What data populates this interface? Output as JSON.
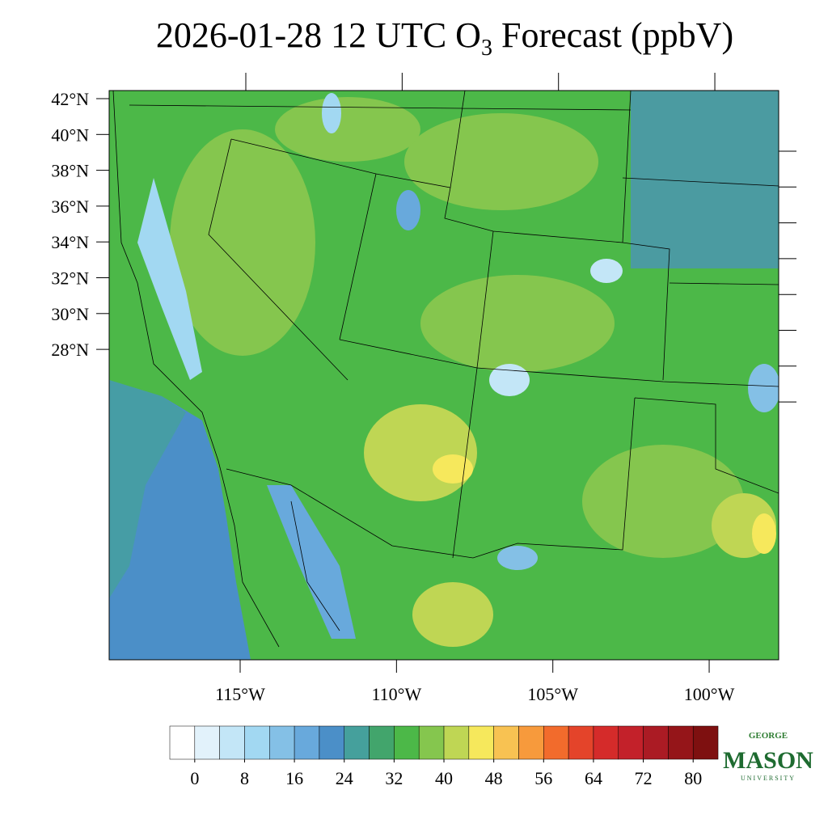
{
  "header": {
    "title_main": "2026-01-28 12 UTC O",
    "title_sub": "3",
    "title_tail": " Forecast (ppbV)"
  },
  "map": {
    "lat_ticks": [
      {
        "value": 42,
        "label": "42°N"
      },
      {
        "value": 40,
        "label": "40°N"
      },
      {
        "value": 38,
        "label": "38°N"
      },
      {
        "value": 36,
        "label": "36°N"
      },
      {
        "value": 34,
        "label": "34°N"
      },
      {
        "value": 32,
        "label": "32°N"
      },
      {
        "value": 30,
        "label": "30°N"
      },
      {
        "value": 28,
        "label": "28°N"
      }
    ],
    "lon_ticks": [
      {
        "value": -115,
        "label": "115°W"
      },
      {
        "value": -110,
        "label": "110°W"
      },
      {
        "value": -105,
        "label": "105°W"
      },
      {
        "value": -100,
        "label": "100°W"
      }
    ]
  },
  "colorbar": {
    "colors": [
      "#ffffff",
      "#e2f2fb",
      "#c3e6f7",
      "#a2d8f2",
      "#84c0e6",
      "#68a9dc",
      "#4b8fc8",
      "#45a09c",
      "#42a56c",
      "#4cb848",
      "#85c64e",
      "#bfd654",
      "#f6e85c",
      "#f8c252",
      "#f79a3c",
      "#f26b2c",
      "#e4442a",
      "#d52b2a",
      "#c3212a",
      "#ab1b24",
      "#951519",
      "#7e1010"
    ],
    "ticks": [
      0,
      8,
      16,
      24,
      32,
      40,
      48,
      56,
      64,
      72,
      80
    ]
  },
  "logo": {
    "top": "GEORGE",
    "main": "MASON",
    "bottom": "UNIVERSITY"
  }
}
